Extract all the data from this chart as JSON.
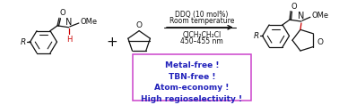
{
  "conditions_line1": "DDQ (10 mol%)",
  "conditions_line2": "Room temperature",
  "conditions_line3": "ClCH₂CH₂Cl",
  "conditions_line4": "450–455 nm",
  "box_lines": [
    "Metal-free !",
    "TBN-free !",
    "Atom-economy !",
    "High regioselectivity !"
  ],
  "box_color": "#cc44cc",
  "box_text_color": "#2222bb",
  "arrow_color": "#333333",
  "bond_color": "#111111",
  "red_bond_color": "#cc0000",
  "conditions_color": "#111111",
  "bg_color": "#ffffff",
  "figsize": [
    3.78,
    1.18
  ],
  "dpi": 100,
  "lw": 0.9
}
